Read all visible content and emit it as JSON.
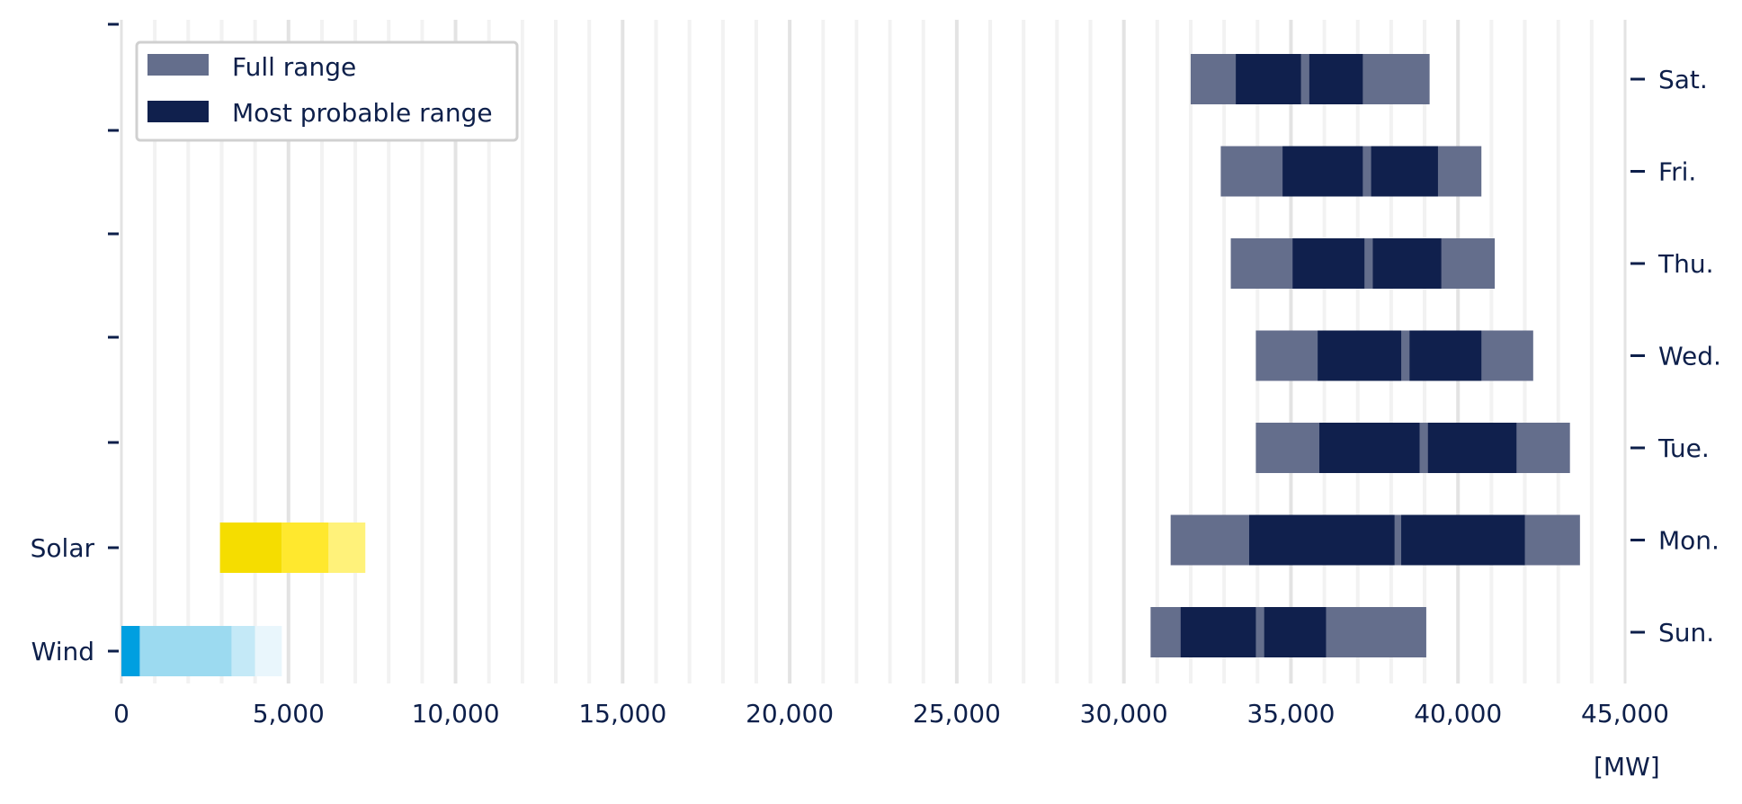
{
  "chart_data": {
    "type": "bar",
    "orientation": "horizontal",
    "x_unit_label": "[MW]",
    "xlim": [
      0,
      45000
    ],
    "x_ticks": [
      0,
      5000,
      10000,
      15000,
      20000,
      25000,
      30000,
      35000,
      40000,
      45000
    ],
    "x_tick_labels": [
      "0",
      "5,000",
      "10,000",
      "15,000",
      "20,000",
      "25,000",
      "30,000",
      "35,000",
      "40,000",
      "45,000"
    ],
    "grid": "vertical",
    "legend": {
      "placement": "top-left",
      "entries": [
        {
          "label": "Full range",
          "color": "#646e8c"
        },
        {
          "label": "Most probable range",
          "color": "#10204d"
        }
      ]
    },
    "colors": {
      "full_range": "#646e8c",
      "most_probable": "#10204d",
      "solar": [
        "#f5dd00",
        "#ffe82e",
        "#fff27a"
      ],
      "wind": [
        "#009fe0",
        "#9cdaf0",
        "#c4e9f7",
        "#e9f6fc"
      ],
      "text": "#0d1f4a"
    },
    "days": [
      {
        "label": "Sat.",
        "full_range": [
          32000,
          39150
        ],
        "probable_ranges": [
          [
            33350,
            35300
          ],
          [
            35550,
            37150
          ]
        ]
      },
      {
        "label": "Fri.",
        "full_range": [
          32900,
          40700
        ],
        "probable_ranges": [
          [
            34750,
            37150
          ],
          [
            37400,
            39400
          ]
        ]
      },
      {
        "label": "Thu.",
        "full_range": [
          33200,
          41100
        ],
        "probable_ranges": [
          [
            35050,
            37200
          ],
          [
            37450,
            39500
          ]
        ]
      },
      {
        "label": "Wed.",
        "full_range": [
          33950,
          42250
        ],
        "probable_ranges": [
          [
            35800,
            38300
          ],
          [
            38550,
            40700
          ]
        ]
      },
      {
        "label": "Tue.",
        "full_range": [
          33950,
          43350
        ],
        "probable_ranges": [
          [
            35850,
            38850
          ],
          [
            39100,
            41750
          ]
        ]
      },
      {
        "label": "Mon.",
        "full_range": [
          31400,
          43650
        ],
        "probable_ranges": [
          [
            33750,
            38100
          ],
          [
            38300,
            42000
          ]
        ]
      },
      {
        "label": "Sun.",
        "full_range": [
          30800,
          39050
        ],
        "probable_ranges": [
          [
            31700,
            33950
          ],
          [
            34200,
            36050
          ]
        ]
      }
    ],
    "sources": [
      {
        "label": "Solar",
        "segments": [
          [
            2950,
            4800
          ],
          [
            4800,
            6200
          ],
          [
            6200,
            7300
          ]
        ]
      },
      {
        "label": "Wind",
        "segments": [
          [
            0,
            550
          ],
          [
            550,
            3300
          ],
          [
            3300,
            4000
          ],
          [
            4000,
            4800
          ]
        ]
      }
    ]
  }
}
